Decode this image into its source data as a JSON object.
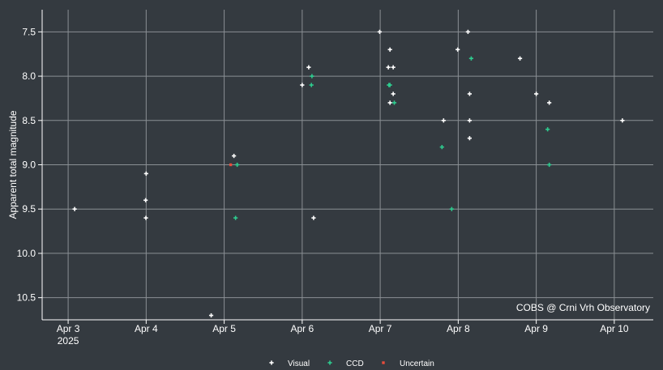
{
  "chart_data": {
    "type": "scatter",
    "ylabel": "Apparent total magnitude",
    "xlim": [
      "2025-04-02T16:00",
      "2025-04-10T12:00"
    ],
    "ylim": [
      10.75,
      7.25
    ],
    "y_reversed": true,
    "grid": true,
    "x_ticks": [
      {
        "x": "2025-04-03",
        "label": "Apr 3",
        "sublabel": "2025"
      },
      {
        "x": "2025-04-04",
        "label": "Apr 4"
      },
      {
        "x": "2025-04-05",
        "label": "Apr 5"
      },
      {
        "x": "2025-04-06",
        "label": "Apr 6"
      },
      {
        "x": "2025-04-07",
        "label": "Apr 7"
      },
      {
        "x": "2025-04-08",
        "label": "Apr 8"
      },
      {
        "x": "2025-04-09",
        "label": "Apr 9"
      },
      {
        "x": "2025-04-10",
        "label": "Apr 10"
      }
    ],
    "y_ticks": [
      {
        "y": 7.5,
        "label": "7.5"
      },
      {
        "y": 8.0,
        "label": "8.0"
      },
      {
        "y": 8.5,
        "label": "8.5"
      },
      {
        "y": 9.0,
        "label": "9.0"
      },
      {
        "y": 9.5,
        "label": "9.5"
      },
      {
        "y": 10.0,
        "label": "10.0"
      },
      {
        "y": 10.5,
        "label": "10.5"
      }
    ],
    "annotation": "COBS @ Crni Vrh Observatory",
    "legend_position": "bottom-center",
    "series": [
      {
        "name": "Visual",
        "color": "#ffffff",
        "marker": "plus",
        "points": [
          {
            "x": "2025-04-03T02:00",
            "y": 9.5
          },
          {
            "x": "2025-04-04T00:00",
            "y": 9.1
          },
          {
            "x": "2025-04-03T23:50",
            "y": 9.4
          },
          {
            "x": "2025-04-03T23:55",
            "y": 9.6
          },
          {
            "x": "2025-04-04T20:00",
            "y": 10.7
          },
          {
            "x": "2025-04-05T03:00",
            "y": 8.9
          },
          {
            "x": "2025-04-06T00:00",
            "y": 8.1
          },
          {
            "x": "2025-04-06T02:00",
            "y": 7.9
          },
          {
            "x": "2025-04-06T03:30",
            "y": 9.6
          },
          {
            "x": "2025-04-06T23:50",
            "y": 7.5
          },
          {
            "x": "2025-04-07T02:30",
            "y": 7.9
          },
          {
            "x": "2025-04-07T03:00",
            "y": 7.7
          },
          {
            "x": "2025-04-07T04:00",
            "y": 7.9
          },
          {
            "x": "2025-04-07T04:00",
            "y": 8.2
          },
          {
            "x": "2025-04-07T03:00",
            "y": 8.3
          },
          {
            "x": "2025-04-07T19:30",
            "y": 8.5
          },
          {
            "x": "2025-04-07T23:50",
            "y": 7.7
          },
          {
            "x": "2025-04-08T03:00",
            "y": 7.5
          },
          {
            "x": "2025-04-08T03:30",
            "y": 8.2
          },
          {
            "x": "2025-04-08T03:30",
            "y": 8.5
          },
          {
            "x": "2025-04-08T03:30",
            "y": 8.7
          },
          {
            "x": "2025-04-08T19:00",
            "y": 7.8
          },
          {
            "x": "2025-04-09T00:00",
            "y": 8.2
          },
          {
            "x": "2025-04-09T04:00",
            "y": 8.3
          },
          {
            "x": "2025-04-10T02:30",
            "y": 8.5
          }
        ]
      },
      {
        "name": "CCD",
        "color": "#2ecc8f",
        "marker": "plus",
        "points": [
          {
            "x": "2025-04-05T04:00",
            "y": 9.0
          },
          {
            "x": "2025-04-05T03:30",
            "y": 9.6
          },
          {
            "x": "2025-04-06T03:00",
            "y": 8.0
          },
          {
            "x": "2025-04-06T02:50",
            "y": 8.1
          },
          {
            "x": "2025-04-07T02:40",
            "y": 8.1
          },
          {
            "x": "2025-04-07T03:00",
            "y": 8.1
          },
          {
            "x": "2025-04-07T04:20",
            "y": 8.3
          },
          {
            "x": "2025-04-07T19:00",
            "y": 8.8
          },
          {
            "x": "2025-04-07T22:00",
            "y": 9.5
          },
          {
            "x": "2025-04-08T04:00",
            "y": 7.8
          },
          {
            "x": "2025-04-09T03:30",
            "y": 8.6
          },
          {
            "x": "2025-04-09T04:00",
            "y": 9.0
          }
        ]
      },
      {
        "name": "Uncertain",
        "color": "#e74c3c",
        "marker": "square",
        "points": [
          {
            "x": "2025-04-05T02:00",
            "y": 9.0
          }
        ]
      }
    ]
  }
}
